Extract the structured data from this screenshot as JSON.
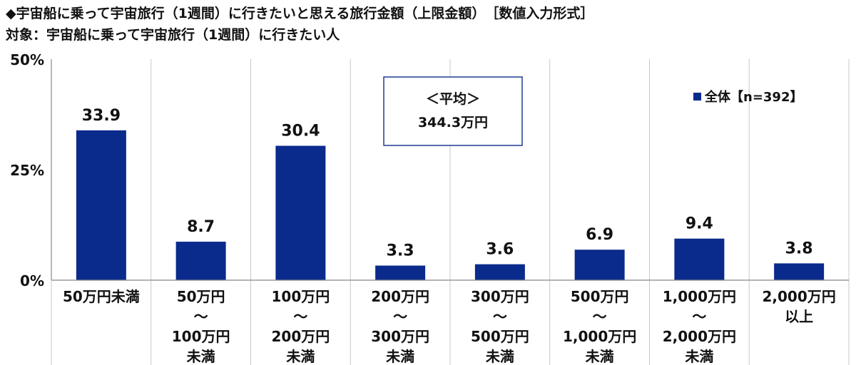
{
  "title": "◆宇宙船に乗って宇宙旅行（1週間）に行きたいと思える旅行金額（上限金額）　［数値入力形式］",
  "subtitle": "対象：宇宙船に乗って宇宙旅行（1週間）に行きたい人",
  "chart_data": {
    "type": "bar",
    "categories": [
      [
        "50万円未満"
      ],
      [
        "50万円",
        "～",
        "100万円",
        "未満"
      ],
      [
        "100万円",
        "～",
        "200万円",
        "未満"
      ],
      [
        "200万円",
        "～",
        "300万円",
        "未満"
      ],
      [
        "300万円",
        "～",
        "500万円",
        "未満"
      ],
      [
        "500万円",
        "～",
        "1,000万円",
        "未満"
      ],
      [
        "1,000万円",
        "～",
        "2,000万円",
        "未満"
      ],
      [
        "2,000万円",
        "以上"
      ]
    ],
    "series": [
      {
        "name": "全体【n=392】",
        "values": [
          33.9,
          8.7,
          30.4,
          3.3,
          3.6,
          6.9,
          9.4,
          3.8
        ],
        "color": "#0a2b8c"
      }
    ],
    "value_labels": [
      "33.9",
      "8.7",
      "30.4",
      "3.3",
      "3.6",
      "6.9",
      "9.4",
      "3.8"
    ],
    "ylim": [
      0,
      50
    ],
    "yticks": [
      0,
      25,
      50
    ],
    "ytick_labels": [
      "0%",
      "25%",
      "50%"
    ],
    "grid": "vertical-category-separators",
    "legend_placement": "top-right",
    "annotation": {
      "line1": "＜平均＞",
      "line2": "344.3万円"
    }
  }
}
